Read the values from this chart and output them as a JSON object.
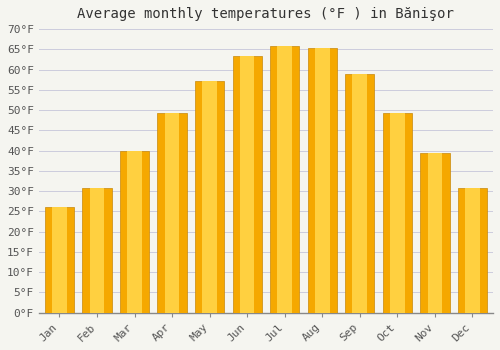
{
  "title": "Average monthly temperatures (°F ) in Bănişor",
  "months": [
    "Jan",
    "Feb",
    "Mar",
    "Apr",
    "May",
    "Jun",
    "Jul",
    "Aug",
    "Sep",
    "Oct",
    "Nov",
    "Dec"
  ],
  "values": [
    26.1,
    30.7,
    39.9,
    49.3,
    57.2,
    63.3,
    65.8,
    65.3,
    58.8,
    49.3,
    39.4,
    30.7
  ],
  "bar_color_outer": "#F5A800",
  "bar_color_inner": "#FFD040",
  "bar_edge_color": "#C8880A",
  "background_color": "#F5F5F0",
  "plot_bg_color": "#F5F5F0",
  "grid_color": "#CCCCDD",
  "ylim": [
    0,
    70
  ],
  "yticks": [
    0,
    5,
    10,
    15,
    20,
    25,
    30,
    35,
    40,
    45,
    50,
    55,
    60,
    65,
    70
  ],
  "ytick_labels": [
    "0°F",
    "5°F",
    "10°F",
    "15°F",
    "20°F",
    "25°F",
    "30°F",
    "35°F",
    "40°F",
    "45°F",
    "50°F",
    "55°F",
    "60°F",
    "65°F",
    "70°F"
  ],
  "title_fontsize": 10,
  "tick_fontsize": 8,
  "font_family": "monospace",
  "bar_width": 0.78,
  "figsize": [
    5.0,
    3.5
  ],
  "dpi": 100
}
